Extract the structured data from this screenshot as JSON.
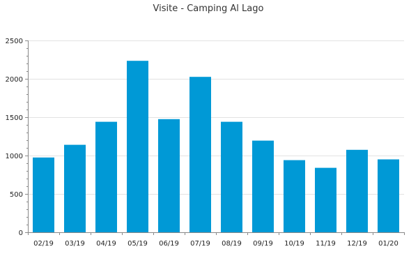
{
  "chart_data": {
    "type": "bar",
    "title": "Visite - Camping Al Lago",
    "xlabel": "",
    "ylabel": "",
    "categories": [
      "02/19",
      "03/19",
      "04/19",
      "05/19",
      "06/19",
      "07/19",
      "08/19",
      "09/19",
      "10/19",
      "11/19",
      "12/19",
      "01/20"
    ],
    "values": [
      975,
      1140,
      1440,
      2235,
      1475,
      2025,
      1440,
      1195,
      940,
      840,
      1075,
      950
    ],
    "ylim": [
      0,
      2500
    ],
    "yticks": [
      0,
      500,
      1000,
      1500,
      2000,
      2500
    ],
    "grid": true,
    "legend": "none",
    "bar_color": "#0099d6"
  }
}
